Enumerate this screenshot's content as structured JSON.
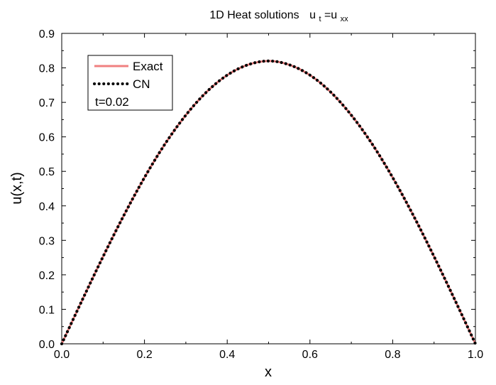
{
  "chart_data": {
    "type": "line",
    "title_main": "1D Heat solutions",
    "title_lhs": "u",
    "title_lhs_sub": "t",
    "title_eq": "=u",
    "title_rhs_sub": "xx",
    "xlabel": "x",
    "ylabel": "u(x,t)",
    "xlim": [
      0.0,
      1.0
    ],
    "ylim": [
      0.0,
      0.9
    ],
    "x_ticks": [
      "0.0",
      "0.2",
      "0.4",
      "0.6",
      "0.8",
      "1.0"
    ],
    "y_ticks": [
      "0.0",
      "0.1",
      "0.2",
      "0.3",
      "0.4",
      "0.5",
      "0.6",
      "0.7",
      "0.8",
      "0.9"
    ],
    "grid": false,
    "legend_position": "top-left",
    "annotation": "t=0.02",
    "series": [
      {
        "name": "Exact",
        "style": "solid",
        "color": "#f08080",
        "x": [
          0.0,
          0.05,
          0.1,
          0.15,
          0.2,
          0.25,
          0.3,
          0.35,
          0.4,
          0.45,
          0.5,
          0.55,
          0.6,
          0.65,
          0.7,
          0.75,
          0.8,
          0.85,
          0.9,
          0.95,
          1.0
        ],
        "y": [
          0.0,
          0.128,
          0.253,
          0.372,
          0.482,
          0.58,
          0.663,
          0.73,
          0.779,
          0.809,
          0.82,
          0.809,
          0.779,
          0.73,
          0.663,
          0.58,
          0.482,
          0.372,
          0.253,
          0.128,
          0.0
        ]
      },
      {
        "name": "CN",
        "style": "dotted",
        "color": "#000000",
        "x": [
          0.0,
          0.05,
          0.1,
          0.15,
          0.2,
          0.25,
          0.3,
          0.35,
          0.4,
          0.45,
          0.5,
          0.55,
          0.6,
          0.65,
          0.7,
          0.75,
          0.8,
          0.85,
          0.9,
          0.95,
          1.0
        ],
        "y": [
          0.0,
          0.128,
          0.253,
          0.372,
          0.482,
          0.58,
          0.663,
          0.73,
          0.779,
          0.809,
          0.82,
          0.809,
          0.779,
          0.73,
          0.663,
          0.58,
          0.482,
          0.372,
          0.253,
          0.128,
          0.0
        ]
      }
    ]
  }
}
